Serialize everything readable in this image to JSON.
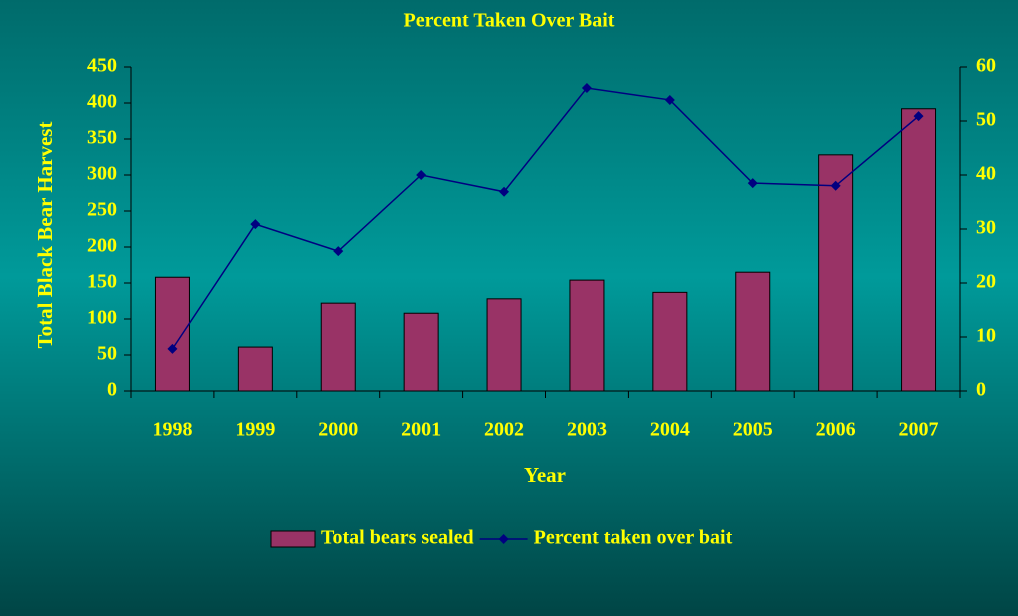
{
  "chart_data": {
    "type": "bar_line",
    "title": "Percent Taken Over Bait",
    "x_label": "Year",
    "y_label": "Total Black Bear Harvest",
    "categories": [
      "1998",
      "1999",
      "2000",
      "2001",
      "2002",
      "2003",
      "2004",
      "2005",
      "2006",
      "2007"
    ],
    "series": [
      {
        "name": "Total bears sealed",
        "type": "bar",
        "color": "#993366",
        "values": [
          158,
          61,
          122,
          108,
          128,
          154,
          137,
          165,
          328,
          392
        ]
      },
      {
        "name": "Percent taken over bait",
        "type": "line",
        "axis": "y2",
        "color": "#000080",
        "values": [
          7.8,
          30.9,
          25.9,
          40,
          36.9,
          56.1,
          53.9,
          38.5,
          38,
          50.9
        ]
      }
    ],
    "ylim": [
      0,
      450
    ],
    "yticks": [
      0,
      50,
      100,
      150,
      200,
      250,
      300,
      350,
      400,
      450
    ],
    "y2lim": [
      0,
      60
    ],
    "y2ticks": [
      0,
      10,
      20,
      30,
      40,
      50,
      60
    ],
    "legend": "bottom"
  }
}
